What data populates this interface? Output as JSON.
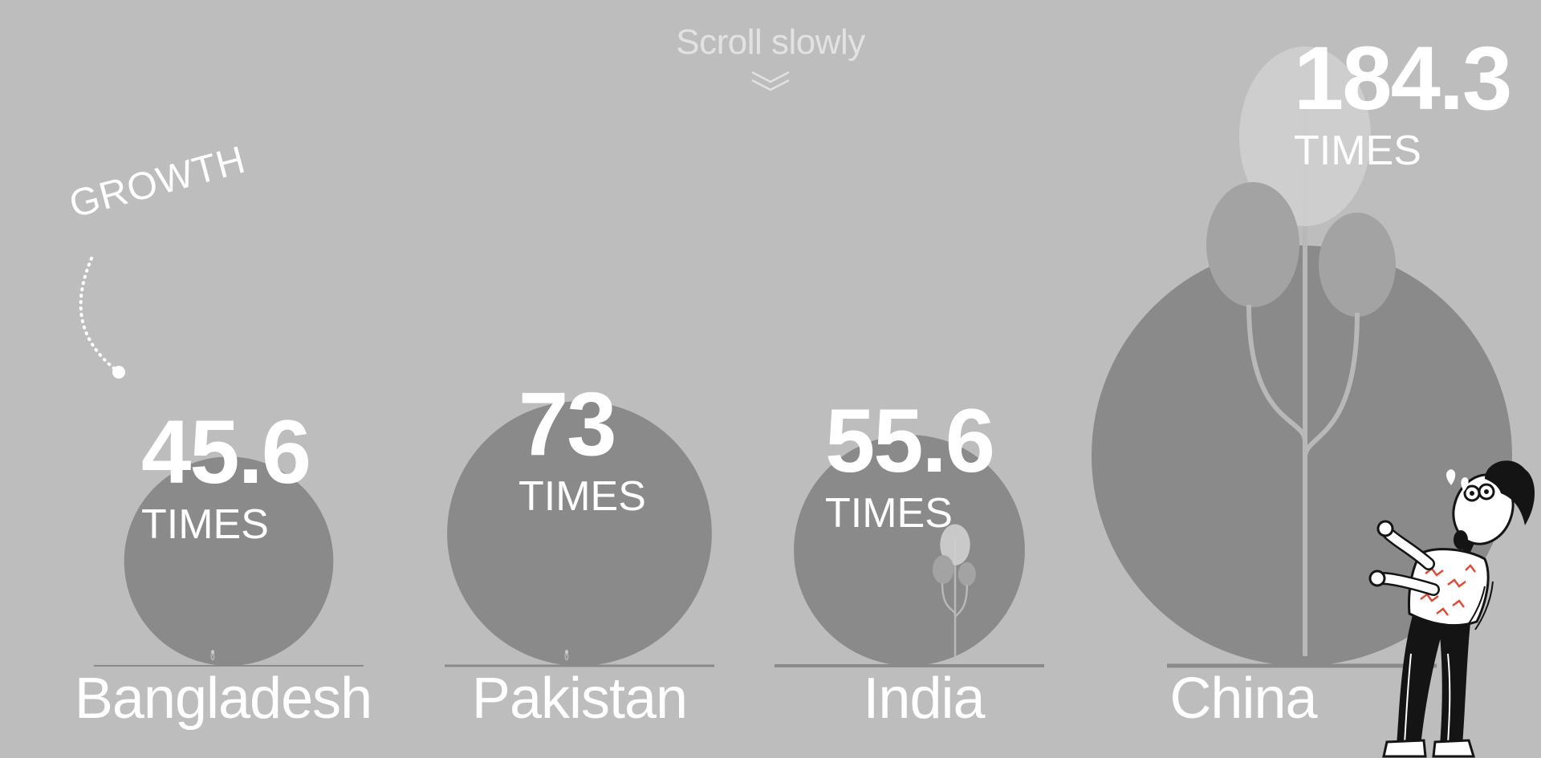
{
  "header": {
    "scroll_hint": "Scroll slowly"
  },
  "annotation": {
    "growth_label": "GROWTH"
  },
  "chart_data": {
    "type": "bubble",
    "title": "",
    "metric_label": "GROWTH",
    "unit": "TIMES",
    "categories": [
      "Bangladesh",
      "Pakistan",
      "India",
      "China"
    ],
    "values": [
      45.6,
      73,
      55.6,
      184.3
    ],
    "value_labels": [
      "45.6",
      "73",
      "55.6",
      "184.3"
    ],
    "grid": false,
    "legend": "none"
  },
  "colors": {
    "background": "#bdbdbd",
    "bubble": "#8a8a8a",
    "tree": "#b8b8b8",
    "text": "#ffffff",
    "baseline": "#8a8a8a"
  },
  "icons": [
    "double-chevron-down-icon",
    "tree-icon",
    "surprised-person-illustration"
  ]
}
